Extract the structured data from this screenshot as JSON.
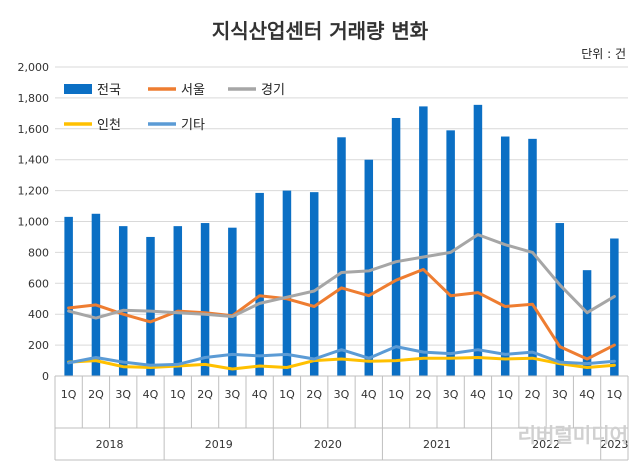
{
  "chart_data": {
    "type": "bar",
    "title": "지식산업센터 거래량 변화",
    "unit_label": "단위 : 건",
    "ylim": [
      0,
      2000
    ],
    "yticks": [
      "0",
      "200",
      "400",
      "600",
      "800",
      "1,000",
      "1,200",
      "1,400",
      "1,600",
      "1,800",
      "2,000"
    ],
    "ytick_values": [
      0,
      200,
      400,
      600,
      800,
      1000,
      1200,
      1400,
      1600,
      1800,
      2000
    ],
    "categories": [
      "1Q",
      "2Q",
      "3Q",
      "4Q",
      "1Q",
      "2Q",
      "3Q",
      "4Q",
      "1Q",
      "2Q",
      "3Q",
      "4Q",
      "1Q",
      "2Q",
      "3Q",
      "4Q",
      "1Q",
      "2Q",
      "3Q",
      "4Q",
      "1Q"
    ],
    "years": [
      {
        "label": "2018",
        "quarters": 4
      },
      {
        "label": "2019",
        "quarters": 4
      },
      {
        "label": "2020",
        "quarters": 4
      },
      {
        "label": "2021",
        "quarters": 4
      },
      {
        "label": "2022",
        "quarters": 4
      },
      {
        "label": "2023",
        "quarters": 1
      }
    ],
    "grid": true,
    "legend_position": "top-left",
    "series": [
      {
        "name": "전국",
        "kind": "bar",
        "color": "#0b6fc4",
        "values": [
          1030,
          1050,
          970,
          900,
          970,
          990,
          960,
          1185,
          1200,
          1190,
          1545,
          1400,
          1670,
          1745,
          1590,
          1755,
          1550,
          1535,
          990,
          685,
          890
        ]
      },
      {
        "name": "서울",
        "kind": "line",
        "color": "#ee7d31",
        "values": [
          440,
          460,
          400,
          350,
          420,
          410,
          390,
          520,
          500,
          450,
          570,
          520,
          620,
          690,
          520,
          540,
          450,
          465,
          190,
          110,
          200
        ]
      },
      {
        "name": "경기",
        "kind": "line",
        "color": "#a6a6a6",
        "values": [
          420,
          375,
          425,
          420,
          410,
          400,
          385,
          470,
          510,
          550,
          670,
          680,
          740,
          770,
          800,
          915,
          850,
          800,
          590,
          410,
          515
        ]
      },
      {
        "name": "인천",
        "kind": "line",
        "color": "#ffc000",
        "values": [
          90,
          100,
          60,
          55,
          65,
          75,
          45,
          65,
          55,
          100,
          110,
          95,
          100,
          115,
          115,
          120,
          110,
          115,
          80,
          55,
          70
        ]
      },
      {
        "name": "기타",
        "kind": "line",
        "color": "#5b9bd5",
        "values": [
          85,
          120,
          90,
          70,
          75,
          120,
          140,
          130,
          140,
          110,
          170,
          115,
          190,
          155,
          145,
          170,
          140,
          155,
          90,
          80,
          95
        ]
      }
    ]
  },
  "watermark": "리버럴미디어"
}
